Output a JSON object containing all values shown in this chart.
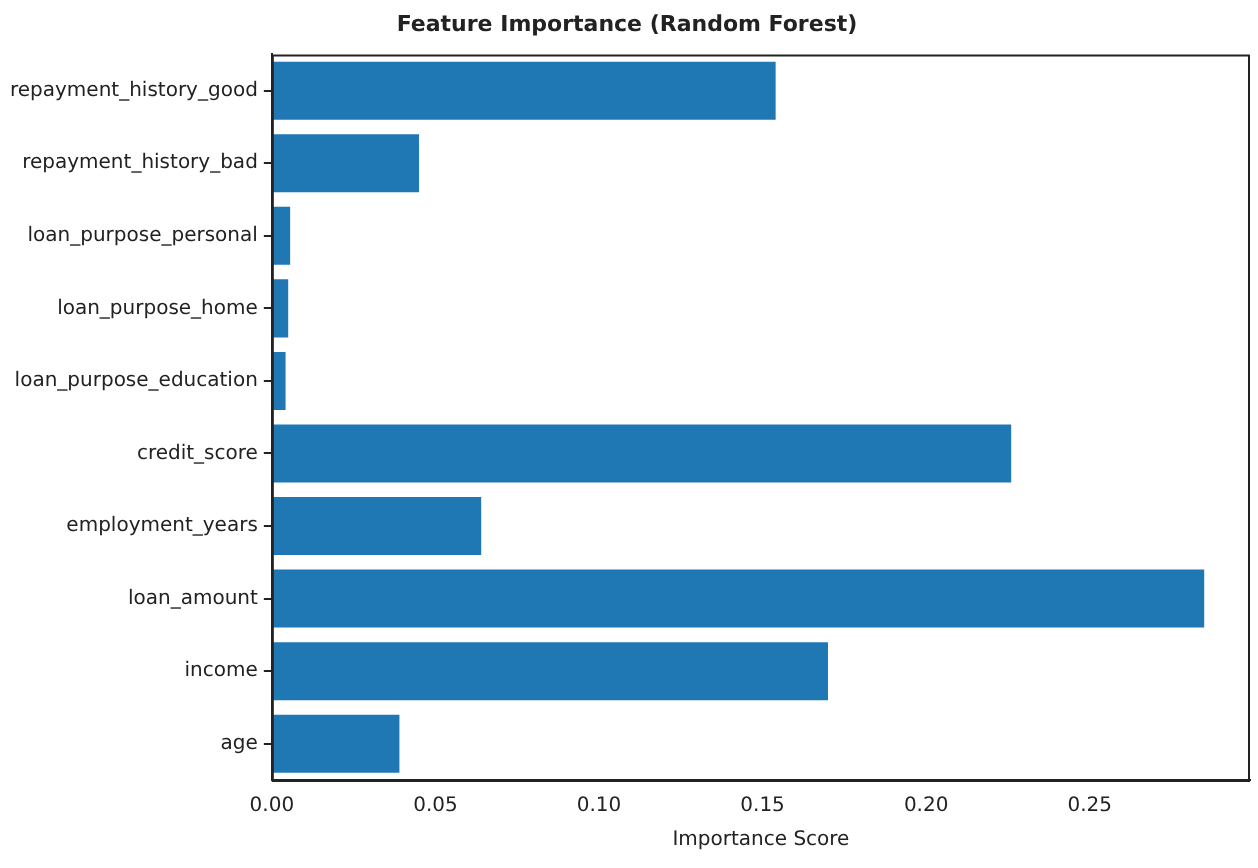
{
  "chart_data": {
    "type": "bar",
    "orientation": "horizontal",
    "title": "Feature Importance (Random Forest)",
    "xlabel": "Importance Score",
    "categories": [
      "repayment_history_good",
      "repayment_history_bad",
      "loan_purpose_personal",
      "loan_purpose_home",
      "loan_purpose_education",
      "credit_score",
      "employment_years",
      "loan_amount",
      "income",
      "age"
    ],
    "values": [
      0.154,
      0.045,
      0.0056,
      0.005,
      0.0042,
      0.226,
      0.064,
      0.285,
      0.17,
      0.039
    ],
    "color": "#1f77b4",
    "xlim": [
      0,
      0.299
    ],
    "xticks": [
      {
        "value": 0,
        "label": "0.00"
      },
      {
        "value": 0.05,
        "label": "0.05"
      },
      {
        "value": 0.1,
        "label": "0.10"
      },
      {
        "value": 0.15,
        "label": "0.15"
      },
      {
        "value": 0.2,
        "label": "0.20"
      },
      {
        "value": 0.25,
        "label": "0.25"
      }
    ],
    "grid": false,
    "legend": false
  }
}
